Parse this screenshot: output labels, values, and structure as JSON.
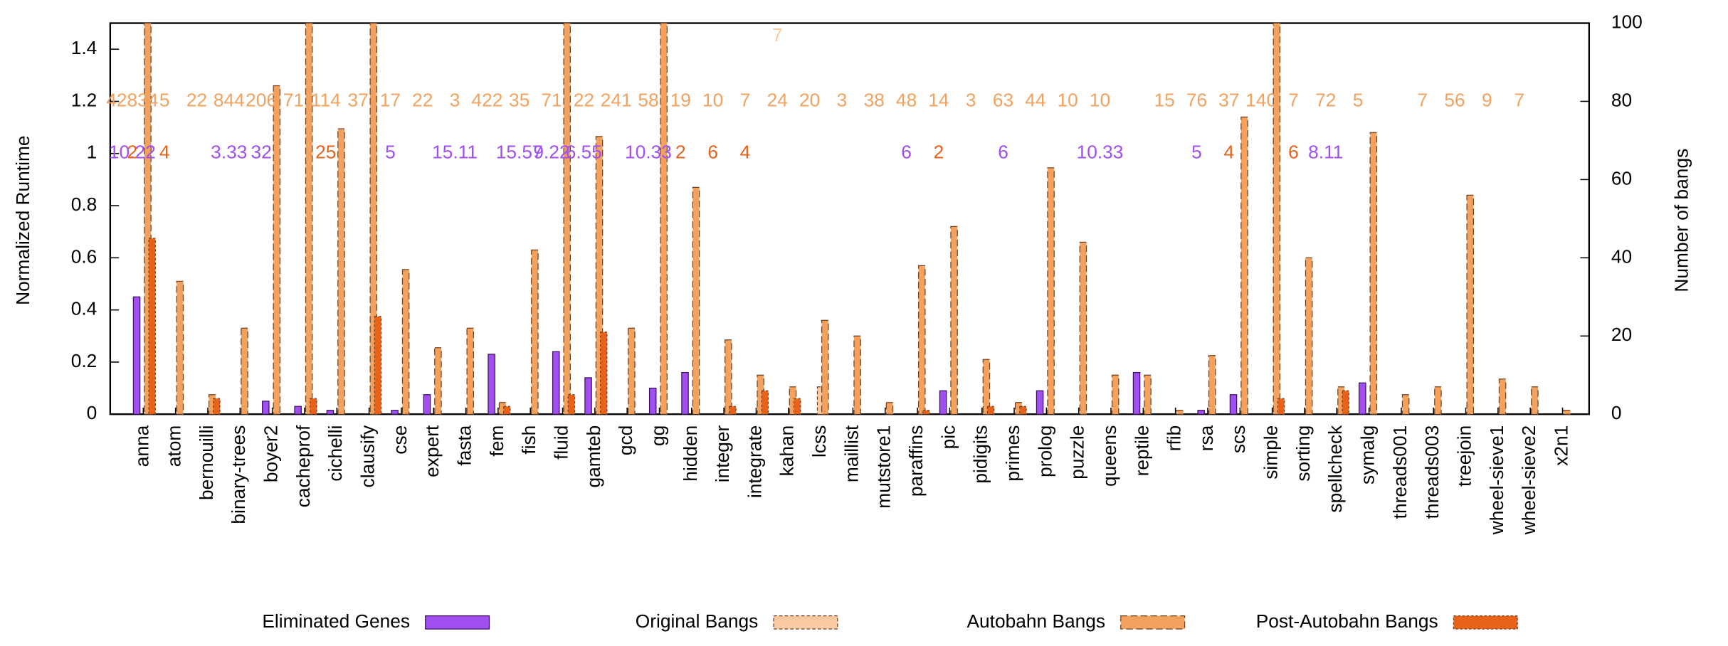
{
  "chart_data": {
    "type": "bar",
    "y_label": "Normalized Runtime",
    "y2_label": "Number of bangs",
    "categories": [
      "anna",
      "atom",
      "bernouilli",
      "binary-trees",
      "boyer2",
      "cacheprof",
      "cichelli",
      "clausify",
      "cse",
      "expert",
      "fasta",
      "fem",
      "fish",
      "fluid",
      "gamteb",
      "gcd",
      "gg",
      "hidden",
      "integer",
      "integrate",
      "kahan",
      "lcss",
      "maillist",
      "mutstore1",
      "paraffins",
      "pic",
      "pidigits",
      "primes",
      "prolog",
      "puzzle",
      "queens",
      "reptile",
      "rfib",
      "rsa",
      "scs",
      "simple",
      "sorting",
      "spellcheck",
      "symalg",
      "threads001",
      "threads003",
      "treejoin",
      "wheel-sieve1",
      "wheel-sieve2",
      "x2n1"
    ],
    "series": [
      {
        "name": "Eliminated Genes",
        "color": "#a14ff0",
        "axis": "y",
        "values": [
          0.45,
          0,
          0,
          0,
          0.05,
          0.03,
          0.015,
          0,
          0.015,
          0.075,
          0,
          0.23,
          0,
          0.24,
          0.14,
          0,
          0.1,
          0.16,
          0,
          0,
          0,
          0,
          0,
          0,
          0,
          0.09,
          0,
          0,
          0.09,
          0,
          0,
          0.16,
          0,
          0.015,
          0.075,
          0,
          0,
          0,
          0.12,
          0,
          0,
          0,
          0,
          0,
          0
        ]
      },
      {
        "name": "Original Bangs",
        "color": "#f9c9a2",
        "axis": "y2",
        "values": [
          0,
          0,
          0,
          0,
          0,
          0,
          0,
          0,
          0,
          0,
          0,
          0,
          0,
          0,
          0,
          0,
          0,
          0,
          0,
          0,
          0,
          7,
          0,
          0,
          0,
          0,
          0,
          0,
          0,
          0,
          0,
          0,
          0,
          0,
          0,
          0,
          0,
          0,
          0,
          0,
          0,
          0,
          0,
          0,
          0
        ]
      },
      {
        "name": "Autobahn Bangs",
        "color": "#f2a25e",
        "axis": "y2",
        "values": [
          100,
          34,
          5,
          22,
          84,
          100,
          73,
          100,
          37,
          17,
          22,
          3,
          42,
          100,
          71,
          22,
          100,
          58,
          19,
          10,
          7,
          24,
          20,
          3,
          38,
          48,
          14,
          3,
          63,
          44,
          10,
          10,
          1,
          15,
          76,
          100,
          40,
          7,
          72,
          5,
          7,
          56,
          9,
          7,
          1
        ]
      },
      {
        "name": "Post-Autobahn Bangs",
        "color": "#e8621a",
        "axis": "y2",
        "values": [
          45,
          0,
          4,
          0,
          0,
          4,
          0,
          25,
          0,
          0,
          0,
          2,
          0,
          5,
          21,
          0,
          0,
          0,
          2,
          6,
          4,
          0,
          0,
          0,
          1,
          0,
          2,
          2,
          0,
          0,
          0,
          0,
          0,
          0,
          0,
          4,
          0,
          6,
          0,
          0,
          0,
          0,
          0,
          0,
          0
        ]
      }
    ],
    "annotation_rows": [
      {
        "y": 1.45,
        "color": "#f9c9a2",
        "labels": [
          null,
          null,
          null,
          null,
          null,
          null,
          null,
          null,
          null,
          null,
          null,
          null,
          null,
          null,
          null,
          null,
          null,
          null,
          null,
          null,
          "7",
          null,
          null,
          null,
          null,
          null,
          null,
          null,
          null,
          null,
          null,
          null,
          null,
          null,
          null,
          null,
          null,
          null,
          null,
          null,
          null,
          null,
          null,
          null,
          null
        ]
      },
      {
        "y": 1.2,
        "color": "#f2a25e",
        "labels": [
          "42834",
          "5",
          "22",
          "844",
          "206",
          "71",
          "114",
          "37",
          "17",
          "22",
          "3",
          "422",
          "35",
          "71",
          "22",
          "241",
          "58",
          "19",
          "10",
          "7",
          "24",
          "20",
          "3",
          "38",
          "48",
          "14",
          "3",
          "63",
          "44",
          "10",
          "10",
          null,
          "15",
          "76",
          "37",
          "140",
          "7",
          "72",
          "5",
          null,
          "7",
          "56",
          "9",
          "7",
          null
        ]
      },
      {
        "y": 1.0,
        "color": "#a14ff0",
        "labels": [
          "10.22",
          null,
          null,
          "3.33",
          "32",
          null,
          null,
          null,
          "5",
          null,
          "15.11",
          null,
          "15.57",
          "9.22",
          "6.55",
          null,
          "10.33",
          null,
          null,
          null,
          null,
          null,
          null,
          null,
          "6",
          null,
          null,
          "6",
          null,
          null,
          "10.33",
          null,
          null,
          "5",
          null,
          null,
          null,
          "8.11",
          null,
          null,
          null,
          null,
          null,
          null,
          null
        ]
      },
      {
        "y": 1.0,
        "color": "#e8621a",
        "labels": [
          "2",
          "4",
          null,
          null,
          null,
          null,
          "25",
          null,
          null,
          null,
          null,
          null,
          null,
          null,
          null,
          null,
          null,
          "2",
          "6",
          "4",
          null,
          null,
          null,
          null,
          null,
          "2",
          null,
          null,
          null,
          null,
          null,
          null,
          null,
          null,
          "4",
          null,
          "6",
          null,
          null,
          null,
          null,
          null,
          null,
          null,
          null
        ]
      }
    ],
    "ylim": [
      0,
      1.5
    ],
    "yticks": [
      0,
      0.2,
      0.4,
      0.6,
      0.8,
      1.2,
      1.4,
      {
        "value": 1.0,
        "label": "1"
      }
    ],
    "y2lim": [
      0,
      100
    ],
    "y2ticks": [
      0,
      20,
      40,
      60,
      80,
      100
    ],
    "legend": "bottom"
  }
}
